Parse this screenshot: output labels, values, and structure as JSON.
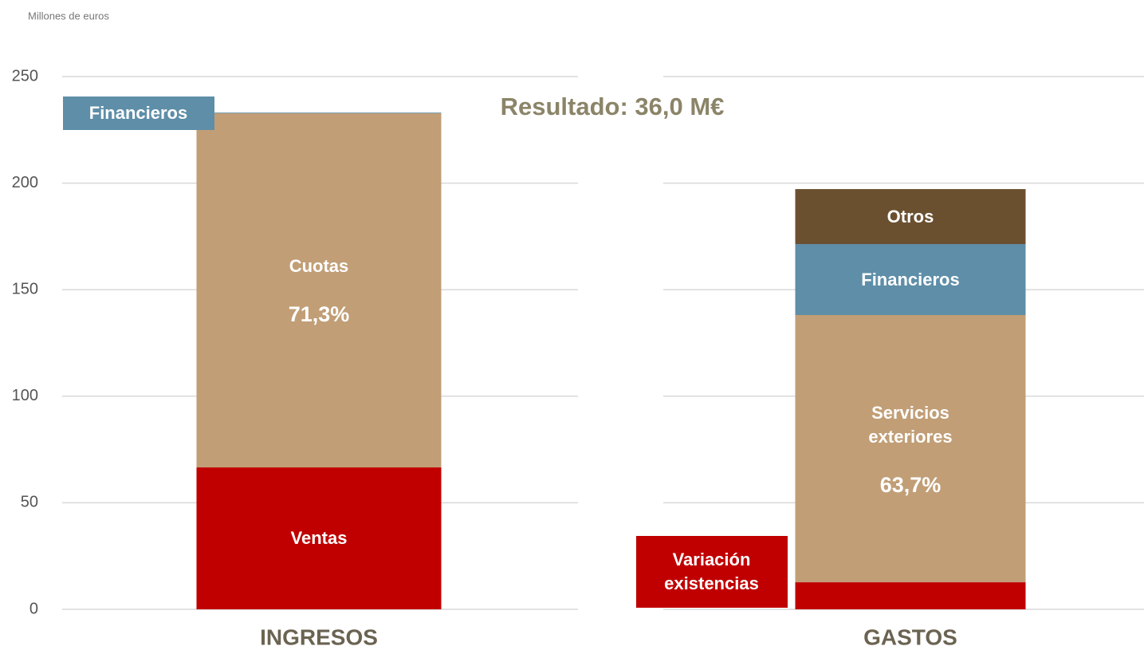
{
  "chart_data": {
    "type": "stacked-bar",
    "subtitle": "Millones de euros",
    "title": "Resultado: 36,0 M€",
    "categories": [
      "INGRESOS",
      "GASTOS"
    ],
    "series": [
      {
        "name": "Ventas",
        "color": "#c00000",
        "values": [
          66.6,
          null
        ]
      },
      {
        "name": "Variación existencias",
        "color": "#c00000",
        "values": [
          null,
          12.7
        ]
      },
      {
        "name": "Cuotas",
        "color": "#c19e76",
        "values": [
          166.2,
          null
        ],
        "percent_labels": [
          "71,3%",
          null
        ]
      },
      {
        "name": "Servicios exteriores",
        "color": "#c19e76",
        "values": [
          null,
          125.4
        ],
        "percent_labels": [
          null,
          "63,7%"
        ]
      },
      {
        "name": "Financieros",
        "color": "#5e8ea8",
        "values": [
          0.3,
          null
        ]
      },
      {
        "name": "Financieros",
        "color": "#5e8ea8",
        "values": [
          null,
          33.3
        ]
      },
      {
        "name": "Otros",
        "color": "#6b5030",
        "values": [
          null,
          25.8
        ]
      }
    ],
    "ylim": [
      0,
      250
    ],
    "yticks": [
      0,
      50,
      100,
      150,
      200,
      250
    ],
    "grid": true
  }
}
